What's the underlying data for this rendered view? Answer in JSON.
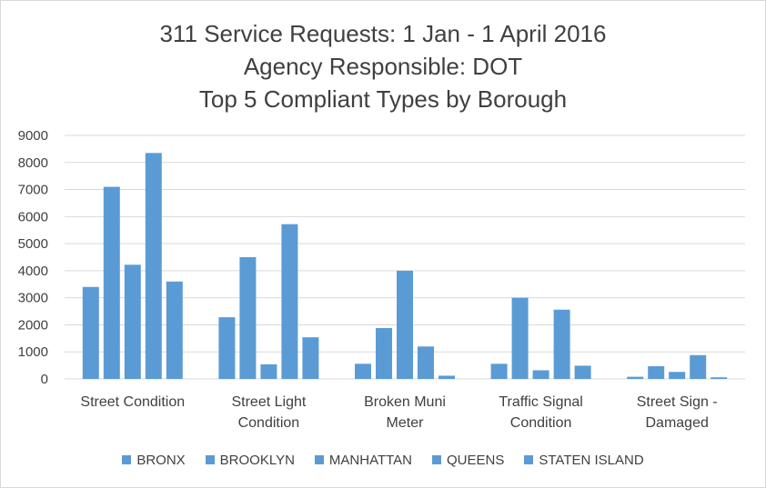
{
  "chart_data": {
    "type": "bar",
    "title_lines": [
      "311 Service Requests: 1 Jan - 1 April 2016",
      "Agency Responsible:  DOT",
      "Top 5 Compliant Types by Borough"
    ],
    "categories": [
      [
        "Street Condition"
      ],
      [
        "Street Light",
        "Condition"
      ],
      [
        "Broken Muni",
        "Meter"
      ],
      [
        "Traffic Signal",
        "Condition"
      ],
      [
        "Street Sign -",
        "Damaged"
      ]
    ],
    "series": [
      {
        "name": "BRONX",
        "values": [
          3400,
          2280,
          560,
          560,
          80
        ]
      },
      {
        "name": "BROOKLYN",
        "values": [
          7100,
          4500,
          1880,
          3000,
          470
        ]
      },
      {
        "name": "MANHATTAN",
        "values": [
          4220,
          540,
          4000,
          320,
          260
        ]
      },
      {
        "name": "QUEENS",
        "values": [
          8350,
          5720,
          1200,
          2560,
          880
        ]
      },
      {
        "name": "STATEN ISLAND",
        "values": [
          3600,
          1540,
          120,
          490,
          60
        ]
      }
    ],
    "ylim": [
      0,
      9000
    ],
    "yticks": [
      "0",
      "1000",
      "2000",
      "3000",
      "4000",
      "5000",
      "6000",
      "7000",
      "8000",
      "9000"
    ],
    "grid": true,
    "legend_position": "bottom",
    "bar_color": "#5b9bd5",
    "gridline_color": "#d9d9d9",
    "text_color": "#404040"
  }
}
